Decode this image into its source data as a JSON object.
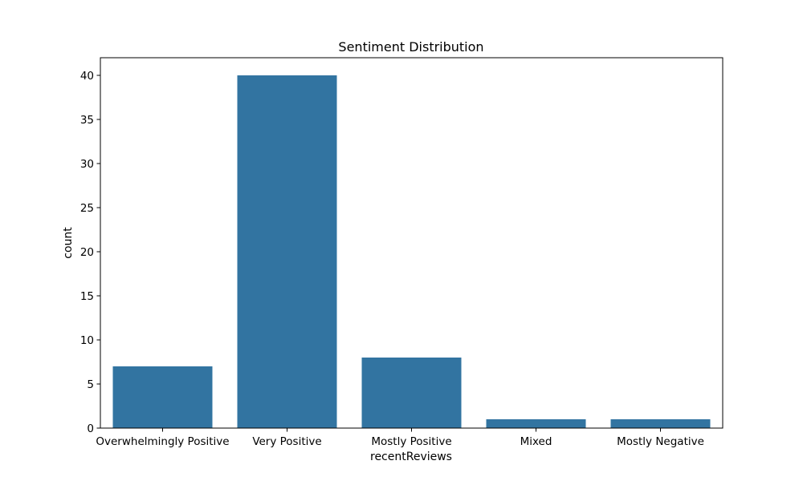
{
  "chart_data": {
    "type": "bar",
    "title": "Sentiment Distribution",
    "xlabel": "recentReviews",
    "ylabel": "count",
    "categories": [
      "Overwhelmingly Positive",
      "Very Positive",
      "Mostly Positive",
      "Mixed",
      "Mostly Negative"
    ],
    "values": [
      7,
      40,
      8,
      1,
      1
    ],
    "ylim": [
      0,
      42
    ],
    "yticks": [
      0,
      5,
      10,
      15,
      20,
      25,
      30,
      35,
      40
    ],
    "grid": false,
    "bar_color": "#3274a1"
  }
}
